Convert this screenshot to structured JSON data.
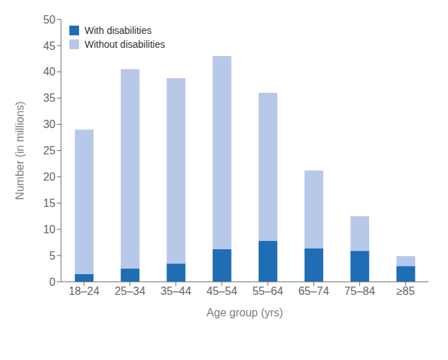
{
  "chart_data": {
    "type": "bar",
    "stacked": true,
    "xlabel": "Age group (yrs)",
    "ylabel": "Number (in millions)",
    "categories": [
      "18–24",
      "25–34",
      "35–44",
      "45–54",
      "55–64",
      "65–74",
      "75–84",
      "≥85"
    ],
    "series": [
      {
        "name": "With disabilities",
        "color": "#1f6eb5",
        "values": [
          1.5,
          2.5,
          3.5,
          6.2,
          7.8,
          6.4,
          5.9,
          3.0
        ]
      },
      {
        "name": "Without disabilities",
        "color": "#b8c8e8",
        "values": [
          27.5,
          38.0,
          35.3,
          36.8,
          28.2,
          14.8,
          6.6,
          1.9
        ]
      }
    ],
    "ylim": [
      0,
      50
    ],
    "yticks": [
      0,
      5,
      10,
      15,
      20,
      25,
      30,
      35,
      40,
      45,
      50
    ],
    "legend": "upper left",
    "grid": false
  }
}
